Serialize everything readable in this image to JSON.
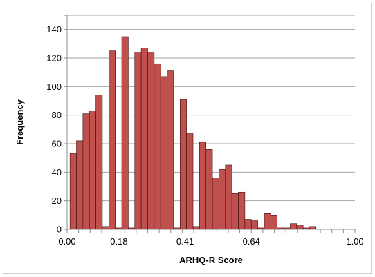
{
  "chart_data": {
    "type": "bar",
    "subtype": "histogram",
    "title": "",
    "xlabel": "ARHQ-R Score",
    "ylabel": "Frequency",
    "ylim": [
      0,
      150
    ],
    "yticks": [
      0,
      20,
      40,
      60,
      80,
      100,
      120,
      140
    ],
    "xlim": [
      0.0,
      1.0
    ],
    "xtick_values": [
      0.0,
      0.18,
      0.41,
      0.64,
      1.0
    ],
    "xtick_labels": [
      "0.00",
      "0.18",
      "0.41",
      "0.64",
      "1.00"
    ],
    "grid": "horizontal",
    "bar_color": "#c0504d",
    "bar_edge_color": "#3a0f0f",
    "bin_edges": [
      0.01,
      0.0325,
      0.055,
      0.0775,
      0.1,
      0.1225,
      0.145,
      0.1675,
      0.19,
      0.2125,
      0.235,
      0.2575,
      0.28,
      0.3025,
      0.325,
      0.3475,
      0.37,
      0.3925,
      0.415,
      0.4375,
      0.46,
      0.4825,
      0.505,
      0.5275,
      0.55,
      0.5725,
      0.595,
      0.6175,
      0.64,
      0.6625,
      0.685,
      0.7075,
      0.73,
      0.7525,
      0.775,
      0.7975,
      0.82,
      0.8425,
      0.865,
      0.8875,
      0.91,
      0.9325,
      0.955
    ],
    "values": [
      53,
      62,
      81,
      83,
      94,
      2,
      125,
      1,
      135,
      1,
      124,
      127,
      124,
      116,
      107,
      111,
      1,
      91,
      67,
      2,
      61,
      56,
      36,
      42,
      45,
      25,
      26,
      7,
      6,
      1,
      11,
      10,
      1,
      1,
      4,
      3,
      1,
      2,
      0,
      0,
      0,
      0
    ]
  }
}
